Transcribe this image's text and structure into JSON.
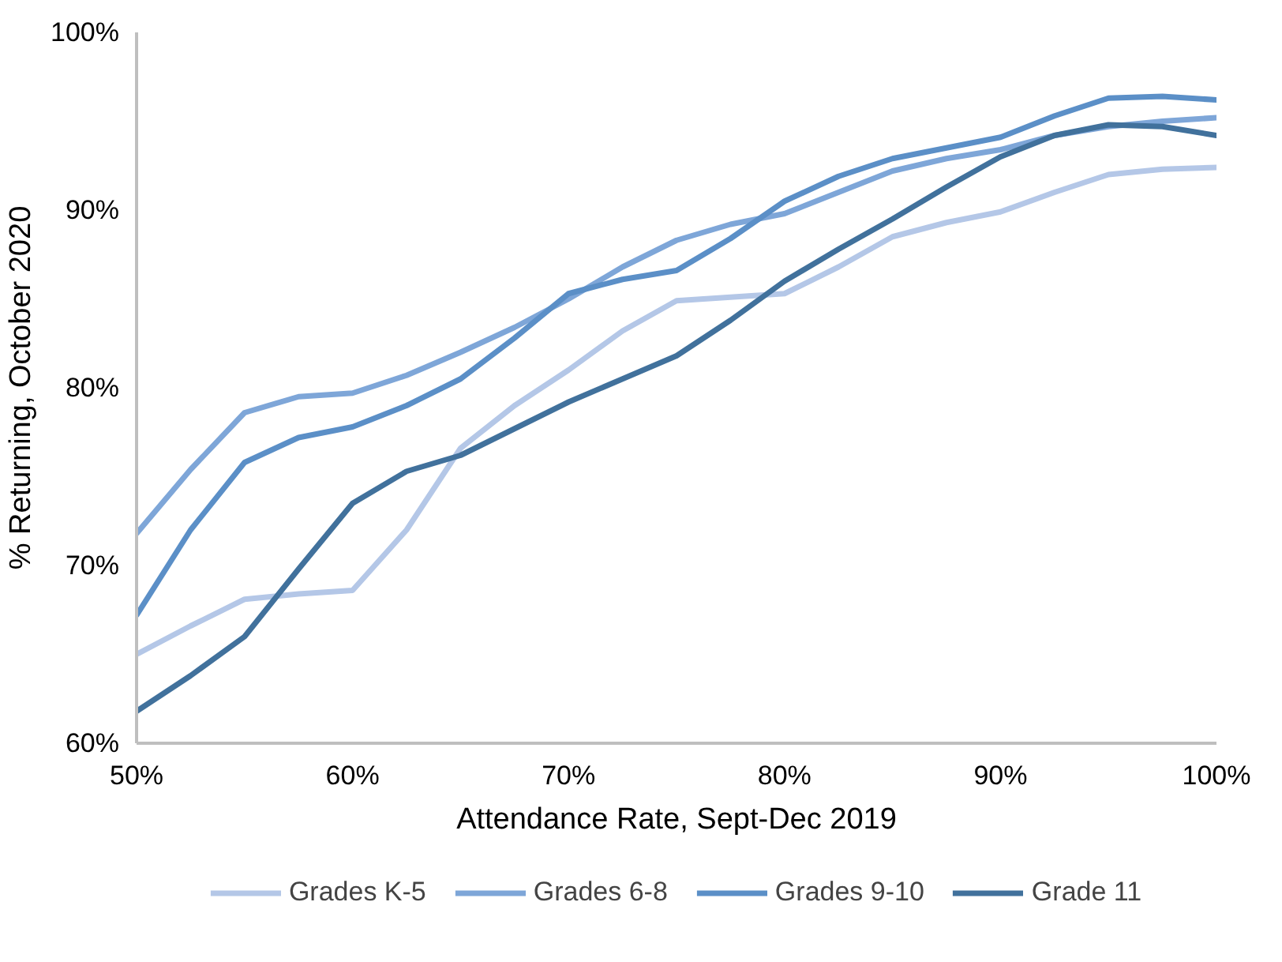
{
  "chart_data": {
    "type": "line",
    "xlabel": "Attendance Rate, Sept-Dec 2019",
    "ylabel": "% Returning, October 2020",
    "x": [
      50,
      52.5,
      55,
      57.5,
      60,
      62.5,
      65,
      67.5,
      70,
      72.5,
      75,
      77.5,
      80,
      82.5,
      85,
      87.5,
      90,
      92.5,
      95,
      97.5,
      100
    ],
    "xlim": [
      50,
      100
    ],
    "ylim": [
      60,
      100
    ],
    "xticks": [
      {
        "value": 50,
        "label": "50%"
      },
      {
        "value": 60,
        "label": "60%"
      },
      {
        "value": 70,
        "label": "70%"
      },
      {
        "value": 80,
        "label": "80%"
      },
      {
        "value": 90,
        "label": "90%"
      },
      {
        "value": 100,
        "label": "100%"
      }
    ],
    "yticks": [
      {
        "value": 60,
        "label": "60%"
      },
      {
        "value": 70,
        "label": "70%"
      },
      {
        "value": 80,
        "label": "80%"
      },
      {
        "value": 90,
        "label": "90%"
      },
      {
        "value": 100,
        "label": "100%"
      }
    ],
    "grid": false,
    "legend": "bottom",
    "series": [
      {
        "name": "Grades K-5",
        "color": "#b4c7e7",
        "values": [
          65.0,
          66.6,
          68.1,
          68.4,
          68.6,
          72.0,
          76.6,
          79.0,
          81.0,
          83.2,
          84.9,
          85.1,
          85.3,
          86.8,
          88.5,
          89.3,
          89.9,
          91.0,
          92.0,
          92.3,
          92.4
        ]
      },
      {
        "name": "Grades 6-8",
        "color": "#7ea6d8",
        "values": [
          71.8,
          75.4,
          78.6,
          79.5,
          79.7,
          80.7,
          82.0,
          83.4,
          85.0,
          86.8,
          88.3,
          89.2,
          89.8,
          91.0,
          92.2,
          92.9,
          93.4,
          94.2,
          94.7,
          95.0,
          95.2
        ]
      },
      {
        "name": "Grades 9-10",
        "color": "#5b8fc7",
        "values": [
          67.2,
          72.0,
          75.8,
          77.2,
          77.8,
          79.0,
          80.5,
          82.8,
          85.3,
          86.1,
          86.6,
          88.4,
          90.5,
          91.9,
          92.9,
          93.5,
          94.1,
          95.3,
          96.3,
          96.4,
          96.2
        ]
      },
      {
        "name": "Grade 11",
        "color": "#41719c",
        "values": [
          61.8,
          63.8,
          66.0,
          69.8,
          73.5,
          75.3,
          76.2,
          77.7,
          79.2,
          80.5,
          81.8,
          83.8,
          86.0,
          87.8,
          89.5,
          91.3,
          93.0,
          94.2,
          94.8,
          94.7,
          94.2
        ]
      }
    ]
  }
}
